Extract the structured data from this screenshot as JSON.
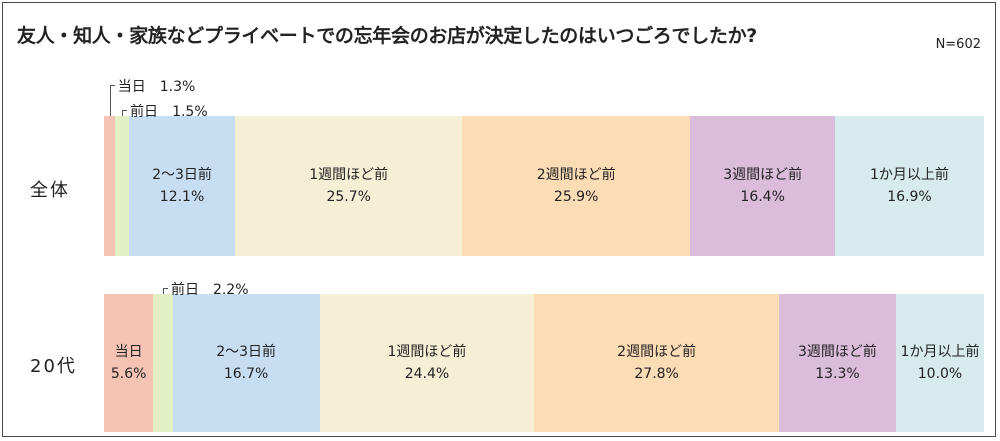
{
  "title": "友人・知人・家族などプライベートでの忘年会のお店が決定したのはいつごろでしたか?",
  "n_label": "N=602",
  "colors": {
    "当日": "#f4c3b4",
    "前日": "#e3efc5",
    "2〜3日前": "#c7ddf2",
    "1週間ほど前": "#f5efd6",
    "2週間ほど前": "#fbdcb5",
    "3週間ほど前": "#dcbcdb",
    "1か月以上前": "#d7ebec"
  },
  "chart_data": {
    "type": "bar",
    "orientation": "horizontal-stacked-100",
    "categories": [
      "当日",
      "前日",
      "2〜3日前",
      "1週間ほど前",
      "2週間ほど前",
      "3週間ほど前",
      "1か月以上前"
    ],
    "rows": [
      {
        "name": "全体",
        "values": [
          1.3,
          1.5,
          12.1,
          25.7,
          25.9,
          16.4,
          16.9
        ],
        "value_labels": [
          "1.3%",
          "1.5%",
          "12.1%",
          "25.7%",
          "25.9%",
          "16.4%",
          "16.9%"
        ]
      },
      {
        "name": "20代",
        "values": [
          5.6,
          2.2,
          16.7,
          24.4,
          27.8,
          13.3,
          10.0
        ],
        "value_labels": [
          "5.6%",
          "2.2%",
          "16.7%",
          "24.4%",
          "27.8%",
          "13.3%",
          "10.0%"
        ]
      }
    ]
  }
}
